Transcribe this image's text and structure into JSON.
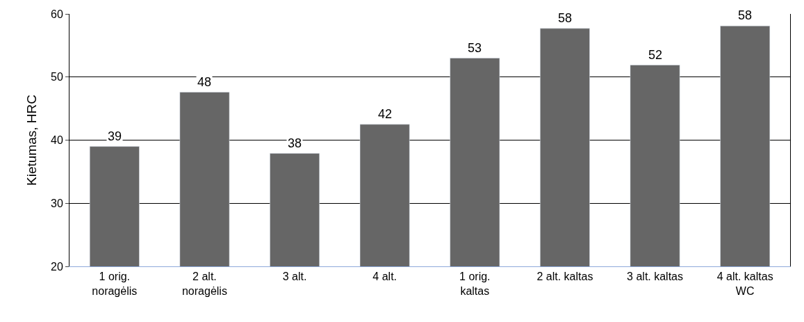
{
  "chart_data": {
    "type": "bar",
    "ylabel": "Kietumas, HRC",
    "categories": [
      "1 orig.\nnoragėlis",
      "2 alt.\nnoragėlis",
      "3 alt.",
      "4 alt.",
      "1 orig.\nkaltas",
      "2 alt. kaltas",
      "3 alt. kaltas",
      "4 alt. kaltas\nWC"
    ],
    "values": [
      39,
      47.6,
      37.9,
      42.5,
      53,
      57.7,
      51.9,
      58.1
    ],
    "value_labels": [
      "39",
      "48",
      "38",
      "42",
      "53",
      "58",
      "52",
      "58"
    ],
    "color": "#666666",
    "ylim": [
      20,
      60
    ],
    "yticks": [
      20,
      30,
      40,
      50,
      60
    ],
    "grid": "y"
  }
}
